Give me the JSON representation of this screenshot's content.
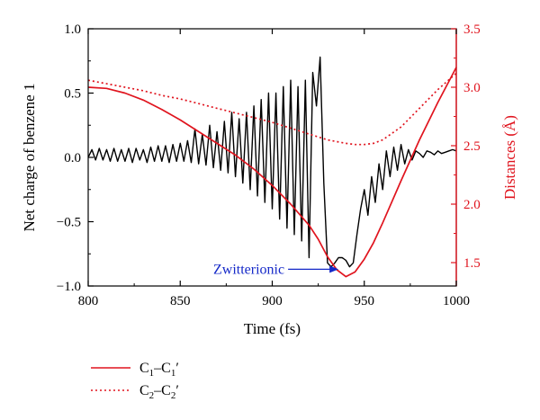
{
  "chart_data": {
    "type": "line",
    "xlabel": "Time (fs)",
    "ylabel_left": "Net charge of benzene 1",
    "ylabel_right": "Distances (Å)",
    "xlim": [
      800,
      1000
    ],
    "ylim_left": [
      -1.0,
      1.0
    ],
    "ylim_right": [
      1.3,
      3.5
    ],
    "x_ticks": [
      800,
      850,
      900,
      950,
      1000
    ],
    "x_tick_labels": [
      "800",
      "850",
      "900",
      "950",
      "1000"
    ],
    "y_left_ticks": [
      -1.0,
      -0.5,
      0.0,
      0.5,
      1.0
    ],
    "y_left_tick_labels": [
      "−1.0",
      "−0.5",
      "0.0",
      "0.5",
      "1.0"
    ],
    "y_right_ticks": [
      1.5,
      2.0,
      2.5,
      3.0,
      3.5
    ],
    "y_right_tick_labels": [
      "1.5",
      "2.0",
      "2.5",
      "3.0",
      "3.5"
    ],
    "grid": false,
    "colors": {
      "left_axis": "#000000",
      "right_axis": "#e0141e",
      "annotation": "#1428c8"
    },
    "series": [
      {
        "id": "net-charge",
        "axis": "left",
        "style": "solid",
        "color": "#000000",
        "x": [
          800,
          802,
          804,
          806,
          808,
          810,
          812,
          814,
          816,
          818,
          820,
          822,
          824,
          826,
          828,
          830,
          832,
          834,
          836,
          838,
          840,
          842,
          844,
          846,
          848,
          850,
          852,
          854,
          856,
          858,
          860,
          862,
          864,
          866,
          868,
          870,
          872,
          874,
          876,
          878,
          880,
          882,
          884,
          886,
          888,
          890,
          892,
          894,
          896,
          898,
          900,
          902,
          904,
          906,
          908,
          910,
          912,
          914,
          916,
          918,
          920,
          922,
          924,
          926,
          928,
          930,
          932,
          934,
          936,
          938,
          940,
          942,
          944,
          946,
          948,
          950,
          952,
          954,
          956,
          958,
          960,
          962,
          964,
          966,
          968,
          970,
          972,
          974,
          976,
          978,
          980,
          982,
          984,
          986,
          988,
          990,
          992,
          994,
          996,
          998,
          1000
        ],
        "y": [
          0.0,
          0.06,
          -0.02,
          0.07,
          -0.02,
          0.06,
          -0.03,
          0.07,
          -0.03,
          0.06,
          -0.03,
          0.07,
          -0.04,
          0.07,
          -0.02,
          0.06,
          -0.04,
          0.08,
          -0.03,
          0.09,
          -0.03,
          0.09,
          -0.04,
          0.1,
          -0.03,
          0.11,
          -0.03,
          0.13,
          -0.04,
          0.22,
          -0.05,
          0.18,
          -0.06,
          0.25,
          -0.08,
          0.2,
          -0.1,
          0.28,
          -0.12,
          0.35,
          -0.15,
          0.3,
          -0.2,
          0.35,
          -0.25,
          0.4,
          -0.3,
          0.45,
          -0.35,
          0.5,
          -0.4,
          0.5,
          -0.48,
          0.55,
          -0.55,
          0.6,
          -0.6,
          0.55,
          -0.65,
          0.6,
          -0.78,
          0.66,
          0.4,
          0.78,
          -0.2,
          -0.82,
          -0.85,
          -0.82,
          -0.78,
          -0.78,
          -0.8,
          -0.85,
          -0.82,
          -0.6,
          -0.4,
          -0.25,
          -0.45,
          -0.15,
          -0.35,
          -0.05,
          -0.25,
          0.05,
          -0.15,
          0.08,
          -0.1,
          0.1,
          -0.05,
          0.06,
          -0.02,
          0.05,
          0.03,
          0.0,
          0.05,
          0.04,
          0.02,
          0.05,
          0.03,
          0.04,
          0.05,
          0.06,
          0.05
        ]
      },
      {
        "id": "c1-c1",
        "axis": "right",
        "style": "solid",
        "color": "#e0141e",
        "legend_main": "C",
        "legend_sub1": "1",
        "legend_dash": "–C",
        "legend_sub2": "1",
        "legend_prime": "′",
        "x": [
          800,
          810,
          820,
          830,
          840,
          850,
          860,
          870,
          880,
          890,
          900,
          910,
          920,
          925,
          930,
          935,
          940,
          945,
          950,
          955,
          960,
          970,
          980,
          990,
          1000
        ],
        "y": [
          3.0,
          2.99,
          2.95,
          2.89,
          2.81,
          2.72,
          2.62,
          2.52,
          2.42,
          2.3,
          2.16,
          2.0,
          1.82,
          1.7,
          1.55,
          1.44,
          1.38,
          1.42,
          1.53,
          1.67,
          1.84,
          2.2,
          2.55,
          2.87,
          3.17
        ]
      },
      {
        "id": "c2-c2",
        "axis": "right",
        "style": "dotted",
        "color": "#e0141e",
        "legend_main": "C",
        "legend_sub1": "2",
        "legend_dash": "–C",
        "legend_sub2": "2",
        "legend_prime": "′",
        "x": [
          800,
          810,
          820,
          830,
          840,
          850,
          860,
          870,
          880,
          890,
          900,
          910,
          920,
          930,
          940,
          945,
          950,
          955,
          960,
          970,
          980,
          990,
          1000
        ],
        "y": [
          3.06,
          3.03,
          3.0,
          2.97,
          2.93,
          2.9,
          2.86,
          2.82,
          2.78,
          2.74,
          2.7,
          2.65,
          2.6,
          2.55,
          2.52,
          2.51,
          2.51,
          2.52,
          2.55,
          2.66,
          2.82,
          2.98,
          3.12
        ]
      }
    ],
    "annotations": [
      {
        "text": "Zwitterionic",
        "arrow_to_x": 936,
        "arrow_to_y_left": -0.87
      }
    ]
  }
}
